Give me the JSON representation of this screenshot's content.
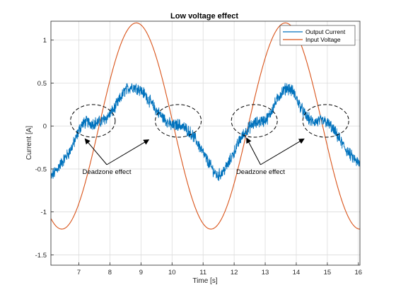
{
  "chart_data": {
    "type": "line",
    "title": "Low voltage effect",
    "xlabel": "Time [s]",
    "ylabel": "Current [A]",
    "xlim": [
      6.1,
      16.05
    ],
    "ylim": [
      -1.62,
      1.22
    ],
    "xticks": [
      7,
      8,
      9,
      10,
      11,
      12,
      13,
      14,
      15,
      16
    ],
    "yticks": [
      -1.5,
      -1,
      -0.5,
      0,
      0.5,
      1
    ],
    "ytick_labels": [
      "-1.5",
      "-1",
      "-0.5",
      "0",
      "0.5",
      "1"
    ],
    "grid": true,
    "legend_position": "top-right",
    "series": [
      {
        "name": "Output Current",
        "color": "#0072BD",
        "noise_amplitude": 0.06,
        "x": [
          6.1,
          6.3,
          6.5,
          6.7,
          6.9,
          7.0,
          7.1,
          7.25,
          7.4,
          7.6,
          7.75,
          7.9,
          8.1,
          8.3,
          8.5,
          8.7,
          8.9,
          9.1,
          9.3,
          9.5,
          9.7,
          9.85,
          10.0,
          10.2,
          10.4,
          10.6,
          10.75,
          10.9,
          11.1,
          11.3,
          11.45,
          11.6,
          11.8,
          12.0,
          12.2,
          12.4,
          12.6,
          12.8,
          12.95,
          13.1,
          13.3,
          13.5,
          13.7,
          13.9,
          14.1,
          14.3,
          14.5,
          14.65,
          14.8,
          14.95,
          15.1,
          15.3,
          15.5,
          15.7,
          15.9,
          16.05
        ],
        "y": [
          -0.6,
          -0.5,
          -0.4,
          -0.3,
          -0.15,
          -0.05,
          0.02,
          0.05,
          0.03,
          0.04,
          0.06,
          0.1,
          0.18,
          0.3,
          0.42,
          0.46,
          0.44,
          0.38,
          0.28,
          0.18,
          0.1,
          0.05,
          0.0,
          0.02,
          -0.02,
          -0.08,
          -0.15,
          -0.25,
          -0.38,
          -0.5,
          -0.58,
          -0.55,
          -0.45,
          -0.3,
          -0.15,
          -0.05,
          0.02,
          0.05,
          0.06,
          0.1,
          0.25,
          0.38,
          0.45,
          0.4,
          0.25,
          0.12,
          0.05,
          0.05,
          0.06,
          0.05,
          0.0,
          -0.1,
          -0.22,
          -0.32,
          -0.4,
          -0.45
        ]
      },
      {
        "name": "Input Voltage",
        "color": "#D95319",
        "amplitude": 1.2,
        "period": 4.8,
        "peak_x": 8.85,
        "x": [
          6.1,
          16.05
        ]
      }
    ],
    "annotations": [
      {
        "text": "Deadzone effect",
        "x": 7.9,
        "y": -0.56
      },
      {
        "text": "Deadzone effect",
        "x": 12.85,
        "y": -0.56
      }
    ],
    "deadzone_ellipses": [
      {
        "cx": 7.45,
        "cy": 0.06,
        "rx": 0.72,
        "ry": 0.19
      },
      {
        "cx": 10.2,
        "cy": 0.06,
        "rx": 0.74,
        "ry": 0.19
      },
      {
        "cx": 12.65,
        "cy": 0.06,
        "rx": 0.74,
        "ry": 0.19
      },
      {
        "cx": 14.95,
        "cy": 0.06,
        "rx": 0.74,
        "ry": 0.19
      }
    ],
    "arrows": [
      {
        "from": [
          7.9,
          -0.45
        ],
        "to": [
          7.2,
          -0.15
        ]
      },
      {
        "from": [
          7.9,
          -0.45
        ],
        "to": [
          9.25,
          -0.16
        ]
      },
      {
        "from": [
          12.85,
          -0.45
        ],
        "to": [
          12.4,
          -0.14
        ]
      },
      {
        "from": [
          12.85,
          -0.45
        ],
        "to": [
          14.25,
          -0.15
        ]
      }
    ]
  }
}
